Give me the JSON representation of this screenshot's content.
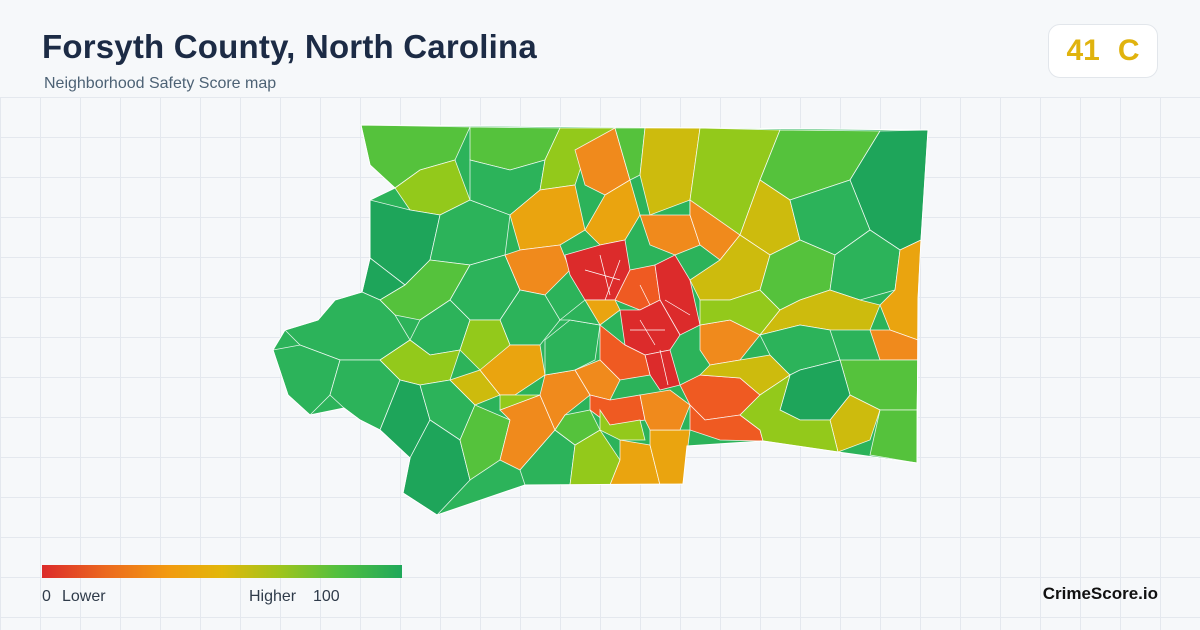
{
  "header": {
    "title": "Forsyth County, North Carolina",
    "subtitle": "Neighborhood Safety Score map"
  },
  "score": {
    "value": "41",
    "grade": "C",
    "color": "#e0b30e"
  },
  "legend": {
    "min_value": "0",
    "min_label": "Lower",
    "max_label": "Higher",
    "max_value": "100",
    "colors": [
      "#dc2b2b",
      "#ec6a1e",
      "#f29a10",
      "#e2b70a",
      "#9fc41c",
      "#53c03e",
      "#1fa85a"
    ]
  },
  "brand": "CrimeScore.io",
  "palette": {
    "red": "#dc2b2b",
    "red_orange": "#ef5a22",
    "orange": "#f08a1c",
    "amber": "#eaa40f",
    "yellow": "#cdbb0d",
    "lime": "#93c91b",
    "light_green": "#55c23c",
    "green": "#2cb35a",
    "dark_green": "#1ea55a"
  }
}
